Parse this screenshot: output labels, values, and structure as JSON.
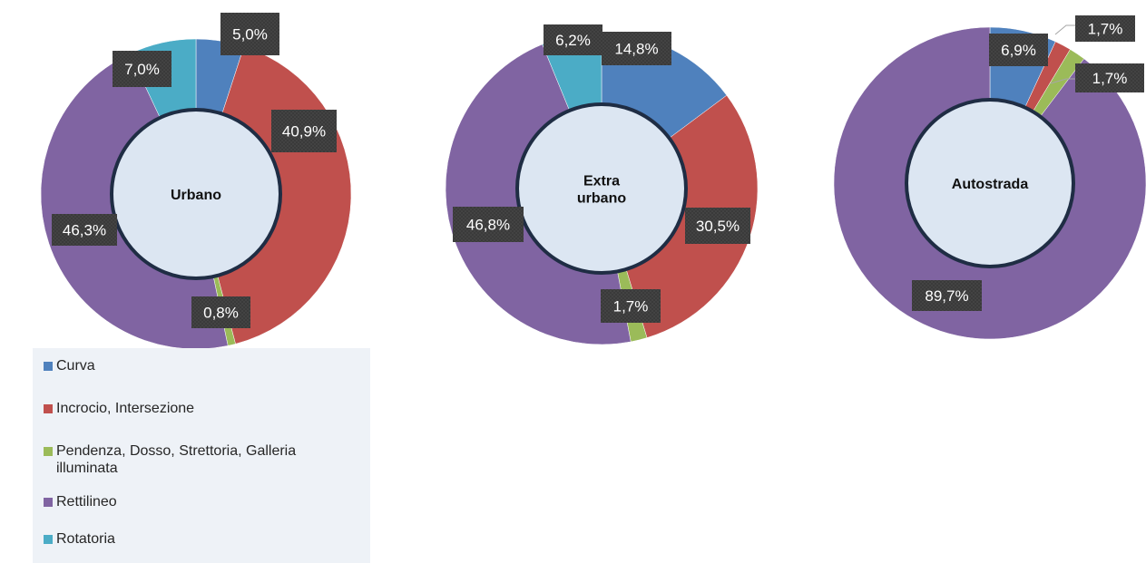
{
  "chart_data": [
    {
      "type": "pie",
      "title": "",
      "center_label": [
        "Urbano"
      ],
      "categories": [
        "Curva",
        "Incrocio, Intersezione",
        "Pendenza, Dosso, Strettoria, Galleria illuminata",
        "Rettilineo",
        "Rotatoria"
      ],
      "values": [
        5.0,
        40.9,
        0.8,
        46.3,
        7.0
      ],
      "labels": [
        "5,0%",
        "40,9%",
        "0,8%",
        "46,3%",
        "7,0%"
      ]
    },
    {
      "type": "pie",
      "title": "",
      "center_label": [
        "Extra",
        "urbano"
      ],
      "categories": [
        "Curva",
        "Incrocio, Intersezione",
        "Pendenza, Dosso, Strettoria, Galleria illuminata",
        "Rettilineo",
        "Rotatoria"
      ],
      "values": [
        14.8,
        30.5,
        1.7,
        46.8,
        6.2
      ],
      "labels": [
        "14,8%",
        "30,5%",
        "1,7%",
        "46,8%",
        "6,2%"
      ]
    },
    {
      "type": "pie",
      "title": "",
      "center_label": [
        "Autostrada"
      ],
      "categories": [
        "Curva",
        "Incrocio, Intersezione",
        "Pendenza, Dosso, Strettoria, Galleria illuminata",
        "Rettilineo",
        "Rotatoria"
      ],
      "values": [
        6.9,
        1.7,
        1.7,
        89.7,
        0
      ],
      "labels": [
        "6,9%",
        "1,7%",
        "1,7%",
        "89,7%",
        ""
      ]
    }
  ],
  "colors": [
    "#4f81bd",
    "#c0504d",
    "#9bbb59",
    "#8064a2",
    "#4bacc6"
  ],
  "legend": {
    "items": [
      "Curva",
      "Incrocio, Intersezione",
      "Pendenza, Dosso, Strettoria, Galleria illuminata",
      "Rettilineo",
      "Rotatoria"
    ]
  }
}
